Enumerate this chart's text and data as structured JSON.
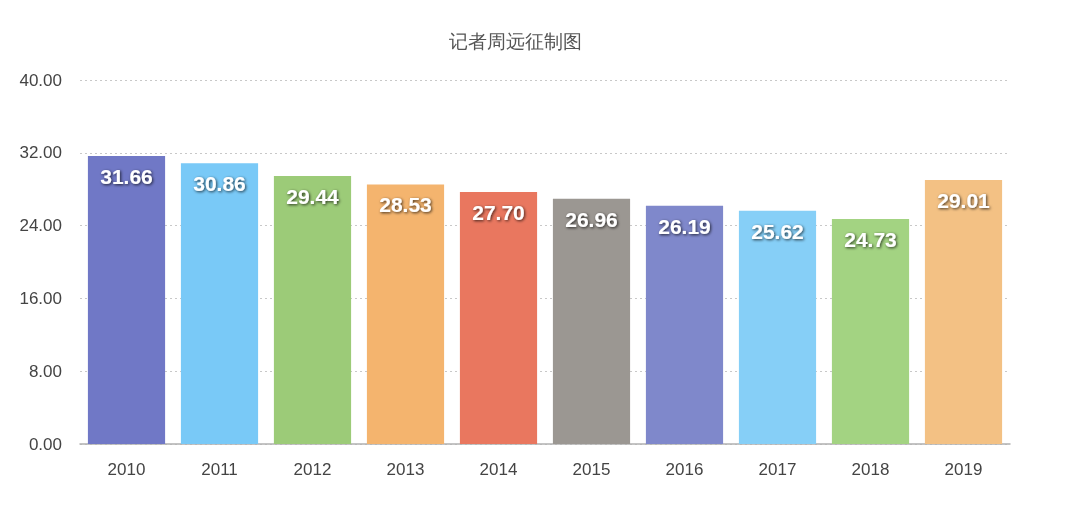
{
  "chart_data": {
    "type": "bar",
    "title": "记者周远征制图",
    "categories": [
      "2010",
      "2011",
      "2012",
      "2013",
      "2014",
      "2015",
      "2016",
      "2017",
      "2018",
      "2019"
    ],
    "values": [
      31.66,
      30.86,
      29.44,
      28.53,
      27.7,
      26.96,
      26.19,
      25.62,
      24.73,
      29.01
    ],
    "value_labels": [
      "31.66",
      "30.86",
      "29.44",
      "28.53",
      "27.70",
      "26.96",
      "26.19",
      "25.62",
      "24.73",
      "29.01"
    ],
    "colors": [
      "#7078c6",
      "#79c9f7",
      "#9ccb78",
      "#f4b46e",
      "#e9775f",
      "#9b9792",
      "#7f88cb",
      "#86cff7",
      "#a3d382",
      "#f3c184"
    ],
    "ylim": [
      0,
      40
    ],
    "yticks": [
      {
        "value": 0,
        "label": "0.00"
      },
      {
        "value": 8,
        "label": "8.00"
      },
      {
        "value": 16,
        "label": "16.00"
      },
      {
        "value": 24,
        "label": "24.00"
      },
      {
        "value": 32,
        "label": "32.00"
      },
      {
        "value": 40,
        "label": "40.00"
      }
    ],
    "grid": "y"
  }
}
